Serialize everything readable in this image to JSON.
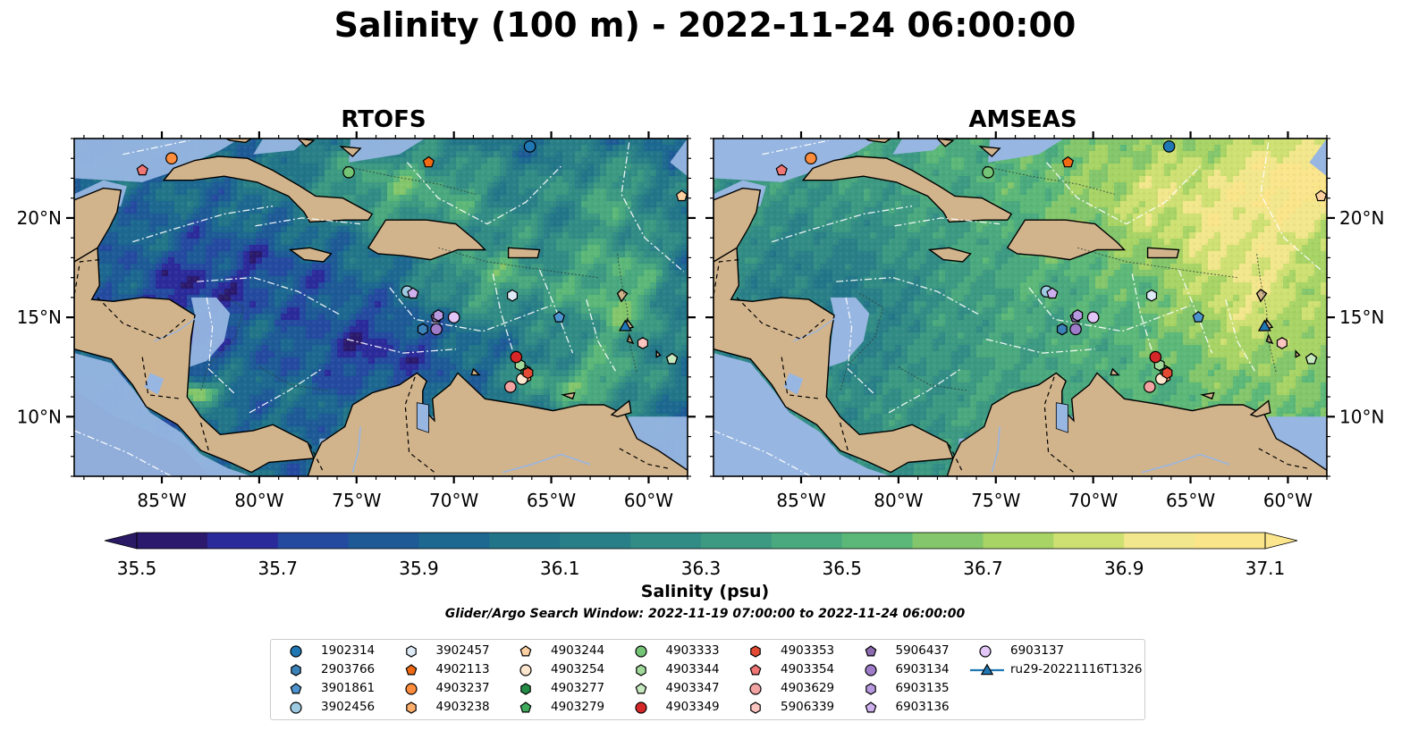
{
  "title": "Salinity (100 m) - 2022-11-24 06:00:00",
  "panels": [
    {
      "title": "RTOFS",
      "model": "rtofs"
    },
    {
      "title": "AMSEAS",
      "model": "amseas"
    }
  ],
  "map": {
    "lon_range": [
      -89.5,
      -58
    ],
    "lat_range": [
      7,
      24
    ],
    "lon_ticks": [
      -85,
      -80,
      -75,
      -70,
      -65,
      -60
    ],
    "lon_tick_labels": [
      "85°W",
      "80°W",
      "75°W",
      "70°W",
      "65°W",
      "60°W"
    ],
    "lat_ticks": [
      10,
      15,
      20
    ],
    "lat_tick_labels": [
      "10°N",
      "15°N",
      "20°N"
    ],
    "colors": {
      "land": "#d2b48c",
      "shelf": "#97b6e1",
      "coastline": "#000000",
      "eez": "#ffffff",
      "rivers": "#97b6e1"
    }
  },
  "colorbar": {
    "label": "Salinity (psu)",
    "min": 35.5,
    "max": 37.1,
    "step": 0.1,
    "extend": "both",
    "tick_values": [
      35.5,
      35.7,
      35.9,
      36.1,
      36.3,
      36.5,
      36.7,
      36.9,
      37.1
    ],
    "tick_labels": [
      "35.5",
      "35.7",
      "35.9",
      "36.1",
      "36.3",
      "36.5",
      "36.7",
      "36.9",
      "37.1"
    ],
    "colors": [
      "#2a196c",
      "#2b2a9a",
      "#244aa0",
      "#1d5a96",
      "#1c6890",
      "#227588",
      "#297f87",
      "#318c85",
      "#3c9982",
      "#4aa97e",
      "#5cb878",
      "#84c66b",
      "#a8d466",
      "#cfe073",
      "#f2e78c",
      "#fae58a"
    ],
    "extend_low_color": "#2a1a66",
    "extend_high_color": "#fbe58d"
  },
  "search_window": "Glider/Argo Search Window: 2022-11-19 07:00:00 to 2022-11-24 06:00:00",
  "legend_items": [
    {
      "label": "1902314",
      "marker": "circle",
      "color": "#1f77b4",
      "lon": -66.1,
      "lat": 23.6
    },
    {
      "label": "2903766",
      "marker": "hexagon",
      "color": "#3b82b8",
      "lon": -71.6,
      "lat": 14.4
    },
    {
      "label": "3901861",
      "marker": "pentagon",
      "color": "#4d94cf",
      "lon": -64.6,
      "lat": 15.0
    },
    {
      "label": "3902456",
      "marker": "circle",
      "color": "#9ecae1",
      "lon": -72.4,
      "lat": 16.3
    },
    {
      "label": "3902457",
      "marker": "hexagon",
      "color": "#deebf7",
      "lon": -67.0,
      "lat": 16.1
    },
    {
      "label": "4902113",
      "marker": "pentagon",
      "color": "#f16913",
      "lon": -71.3,
      "lat": 22.8
    },
    {
      "label": "4903237",
      "marker": "circle",
      "color": "#fd8d3c",
      "lon": -84.5,
      "lat": 23.0
    },
    {
      "label": "4903238",
      "marker": "hexagon",
      "color": "#fdae6b",
      "lon": -66.3,
      "lat": 12.0
    },
    {
      "label": "4903244",
      "marker": "pentagon",
      "color": "#fdd0a2",
      "lon": -58.3,
      "lat": 21.1
    },
    {
      "label": "4903254",
      "marker": "circle",
      "color": "#fee6ce",
      "lon": -66.5,
      "lat": 11.9
    },
    {
      "label": "4903277",
      "marker": "hexagon",
      "color": "#238b45",
      "lon": -66.3,
      "lat": 12.3
    },
    {
      "label": "4903279",
      "marker": "pentagon",
      "color": "#41ab5d",
      "lon": -58.8,
      "lat": 12.9
    },
    {
      "label": "4903333",
      "marker": "circle",
      "color": "#74c476",
      "lon": -75.4,
      "lat": 22.3
    },
    {
      "label": "4903344",
      "marker": "hexagon",
      "color": "#a1d99b",
      "lon": -66.6,
      "lat": 12.6
    },
    {
      "label": "4903347",
      "marker": "pentagon",
      "color": "#c7e9c0",
      "lon": -58.8,
      "lat": 12.9
    },
    {
      "label": "4903349",
      "marker": "circle",
      "color": "#d62728",
      "lon": -66.8,
      "lat": 13.0
    },
    {
      "label": "4903353",
      "marker": "hexagon",
      "color": "#e34a33",
      "lon": -66.2,
      "lat": 12.2
    },
    {
      "label": "4903354",
      "marker": "pentagon",
      "color": "#f07575",
      "lon": -86.0,
      "lat": 22.4
    },
    {
      "label": "4903629",
      "marker": "circle",
      "color": "#f4a3a3",
      "lon": -67.1,
      "lat": 11.5
    },
    {
      "label": "5906339",
      "marker": "hexagon",
      "color": "#fcc5c0",
      "lon": -60.3,
      "lat": 13.7
    },
    {
      "label": "5906437",
      "marker": "pentagon",
      "color": "#8c6bb1",
      "lon": -70.9,
      "lat": 15.0
    },
    {
      "label": "6903134",
      "marker": "circle",
      "color": "#9e7cc9",
      "lon": -70.9,
      "lat": 14.4
    },
    {
      "label": "6903135",
      "marker": "hexagon",
      "color": "#b799df",
      "lon": -70.8,
      "lat": 15.1
    },
    {
      "label": "6903136",
      "marker": "pentagon",
      "color": "#cfb0ef",
      "lon": -72.1,
      "lat": 16.2
    },
    {
      "label": "6903137",
      "marker": "circle",
      "color": "#e2c6f7",
      "lon": -70.0,
      "lat": 15.0
    },
    {
      "label": "ru29-20221116T1326",
      "marker": "triangle",
      "color": "#1f77b4",
      "lon": -61.2,
      "lat": 14.5
    }
  ]
}
